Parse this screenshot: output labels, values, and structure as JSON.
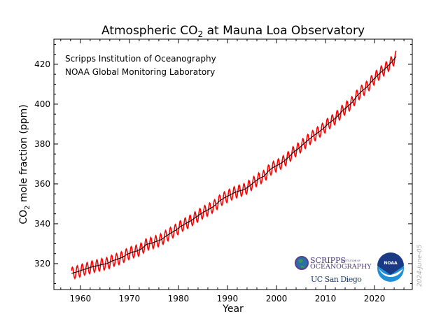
{
  "chart_data": {
    "type": "line",
    "title_main": "Atmospheric CO",
    "title_sub": "2",
    "title_rest": " at Mauna Loa Observatory",
    "xlabel": "Year",
    "ylabel_main": "CO",
    "ylabel_sub": "2",
    "ylabel_rest": " mole fraction (ppm)",
    "xlim": [
      1954.6,
      2027.7
    ],
    "ylim": [
      307,
      432.6
    ],
    "xticks": [
      1960,
      1970,
      1980,
      1990,
      2000,
      2010,
      2020
    ],
    "yticks": [
      320,
      340,
      360,
      380,
      400,
      420
    ],
    "grid": false,
    "annotations": [
      "Scripps Institution of Oceanography",
      "NOAA Global Monitoring Laboratory"
    ],
    "date_stamp": "2024-June-05",
    "seasonal_amplitude_ppm": 3.0,
    "series": [
      {
        "kind": "monthly",
        "color": "#ff0000"
      },
      {
        "kind": "trend",
        "color": "#000000"
      }
    ],
    "annual_mean": {
      "years": [
        1958,
        1959,
        1960,
        1961,
        1962,
        1963,
        1964,
        1965,
        1966,
        1967,
        1968,
        1969,
        1970,
        1971,
        1972,
        1973,
        1974,
        1975,
        1976,
        1977,
        1978,
        1979,
        1980,
        1981,
        1982,
        1983,
        1984,
        1985,
        1986,
        1987,
        1988,
        1989,
        1990,
        1991,
        1992,
        1993,
        1994,
        1995,
        1996,
        1997,
        1998,
        1999,
        2000,
        2001,
        2002,
        2003,
        2004,
        2005,
        2006,
        2007,
        2008,
        2009,
        2010,
        2011,
        2012,
        2013,
        2014,
        2015,
        2016,
        2017,
        2018,
        2019,
        2020,
        2021,
        2022,
        2023,
        2024
      ],
      "values": [
        315.3,
        315.98,
        316.91,
        317.64,
        318.45,
        318.99,
        319.62,
        320.04,
        321.37,
        322.18,
        323.05,
        324.62,
        325.68,
        326.32,
        327.46,
        329.68,
        330.19,
        331.13,
        332.03,
        333.84,
        335.41,
        336.84,
        338.76,
        340.12,
        341.48,
        343.15,
        344.87,
        346.35,
        347.61,
        349.31,
        351.69,
        353.2,
        354.45,
        355.7,
        356.54,
        357.21,
        358.96,
        360.97,
        362.74,
        363.88,
        366.84,
        368.54,
        369.71,
        371.32,
        373.45,
        375.98,
        377.7,
        379.98,
        382.09,
        384.02,
        385.83,
        387.64,
        390.1,
        391.85,
        394.06,
        396.74,
        398.81,
        401.01,
        404.41,
        406.76,
        408.72,
        411.65,
        414.21,
        416.41,
        418.53,
        421.08,
        424.2
      ]
    }
  },
  "logos": {
    "scripps_line1": "SCRIPPS",
    "scripps_small": "INSTITUTION OF",
    "scripps_line2": "OCEANOGRAPHY",
    "ucsd": "UC San Diego",
    "noaa": "NOAA"
  }
}
